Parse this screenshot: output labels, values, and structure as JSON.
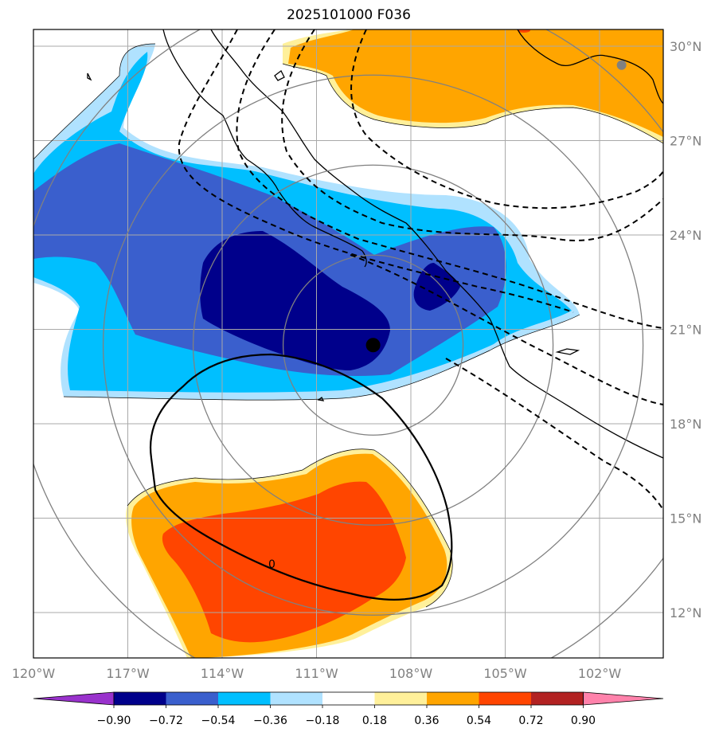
{
  "chart_data": {
    "type": "contourf-map",
    "title": "2025101000 F036",
    "lon_ticks": [
      "120°W",
      "117°W",
      "114°W",
      "111°W",
      "108°W",
      "105°W",
      "102°W"
    ],
    "lon_values": [
      -120,
      -117,
      -114,
      -111,
      -108,
      -105,
      -102
    ],
    "lat_ticks": [
      "30°N",
      "27°N",
      "24°N",
      "21°N",
      "18°N",
      "15°N",
      "12°N"
    ],
    "lat_values": [
      30,
      27,
      24,
      21,
      18,
      15,
      12
    ],
    "lon_range": [
      -120,
      -100
    ],
    "lat_range": [
      10.5,
      30.5
    ],
    "colorbar": {
      "levels": [
        -0.9,
        -0.72,
        -0.54,
        -0.36,
        -0.18,
        0.18,
        0.36,
        0.54,
        0.72,
        0.9
      ],
      "labels": [
        "−0.90",
        "−0.72",
        "−0.54",
        "−0.36",
        "−0.18",
        "0.18",
        "0.36",
        "0.54",
        "0.72",
        "0.90"
      ],
      "colors": [
        "#9932cc",
        "#00008b",
        "#3a5fcd",
        "#00bfff",
        "#b0e2ff",
        "#ffffff",
        "#fff09a",
        "#ffa500",
        "#ff4500",
        "#b22222",
        "#ff82ab"
      ],
      "extend": "both"
    },
    "storm_center": {
      "lon": -109.2,
      "lat": 20.5
    },
    "range_ring_center": {
      "lon": -109.2,
      "lat": 20.5
    },
    "contour_label": "0",
    "marker_city": {
      "lon": -101.3,
      "lat": 29.4
    }
  }
}
